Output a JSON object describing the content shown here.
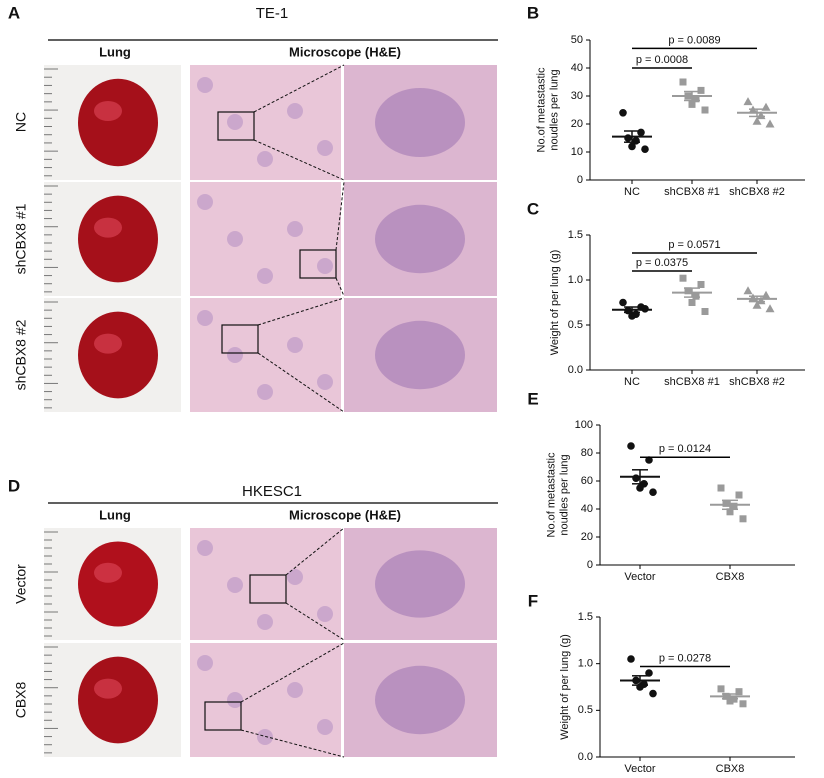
{
  "panel_labels": [
    "A",
    "B",
    "C",
    "D",
    "E",
    "F"
  ],
  "panel_a": {
    "title": "TE-1",
    "col_lung": "Lung",
    "col_micro": "Microscope (H&E)",
    "rows": [
      "NC",
      "shCBX8 #1",
      "shCBX8 #2"
    ]
  },
  "panel_d": {
    "title": "HKESC1",
    "col_lung": "Lung",
    "col_micro": "Microscope (H&E)",
    "rows": [
      "Vector",
      "CBX8"
    ]
  },
  "chart_data": [
    {
      "type": "dot",
      "ylabel": [
        "No.of metastastic",
        "noudles per lung"
      ],
      "categories": [
        "NC",
        "shCBX8 #1",
        "shCBX8 #2"
      ],
      "colors": [
        "#111111",
        "#9a9a9a",
        "#9a9a9a"
      ],
      "markers": [
        "circle",
        "square",
        "triangle"
      ],
      "points": [
        [
          24,
          17,
          15,
          14,
          12,
          11
        ],
        [
          35,
          32,
          30,
          29,
          27,
          25
        ],
        [
          28,
          26,
          25,
          23,
          21,
          20
        ]
      ],
      "means": [
        15.5,
        30,
        24
      ],
      "sems": [
        2,
        1.6,
        1.3
      ],
      "ylim": [
        0,
        50
      ],
      "yticks": [
        0,
        10,
        20,
        30,
        40,
        50
      ],
      "comparisons": [
        {
          "from": 0,
          "to": 1,
          "y": 40,
          "label": "p = 0.0008"
        },
        {
          "from": 0,
          "to": 2,
          "y": 47,
          "label": "p = 0.0089"
        }
      ]
    },
    {
      "type": "dot",
      "ylabel": [
        "Weight of per lung (g)"
      ],
      "categories": [
        "NC",
        "shCBX8 #1",
        "shCBX8 #2"
      ],
      "colors": [
        "#111111",
        "#9a9a9a",
        "#9a9a9a"
      ],
      "markers": [
        "circle",
        "square",
        "triangle"
      ],
      "points": [
        [
          0.75,
          0.7,
          0.66,
          0.62,
          0.6,
          0.68
        ],
        [
          1.02,
          0.95,
          0.88,
          0.82,
          0.75,
          0.65
        ],
        [
          0.88,
          0.83,
          0.8,
          0.77,
          0.72,
          0.68
        ]
      ],
      "means": [
        0.67,
        0.86,
        0.79
      ],
      "sems": [
        0.03,
        0.05,
        0.03
      ],
      "ylim": [
        0,
        1.5
      ],
      "yticks": [
        {
          "value": 0,
          "label": "0.0"
        },
        0.5,
        {
          "value": 1,
          "label": "1.0"
        },
        1.5
      ],
      "comparisons": [
        {
          "from": 0,
          "to": 1,
          "y": 1.1,
          "label": "p = 0.0375"
        },
        {
          "from": 0,
          "to": 2,
          "y": 1.3,
          "label": "p = 0.0571"
        }
      ]
    },
    {
      "type": "dot",
      "ylabel": [
        "No.of metastastic",
        "noudles per lung"
      ],
      "categories": [
        "Vector",
        "CBX8"
      ],
      "colors": [
        "#111111",
        "#9a9a9a"
      ],
      "markers": [
        "circle",
        "square"
      ],
      "points": [
        [
          85,
          75,
          62,
          58,
          55,
          52
        ],
        [
          55,
          50,
          44,
          42,
          38,
          33
        ]
      ],
      "means": [
        63,
        43
      ],
      "sems": [
        5,
        3.2
      ],
      "ylim": [
        0,
        100
      ],
      "yticks": [
        0,
        20,
        40,
        60,
        80,
        100
      ],
      "comparisons": [
        {
          "from": 0,
          "to": 1,
          "y": 77,
          "label": "p = 0.0124"
        }
      ]
    },
    {
      "type": "dot",
      "ylabel": [
        "Weight of per lung (g)"
      ],
      "categories": [
        "Vector",
        "CBX8"
      ],
      "colors": [
        "#111111",
        "#9a9a9a"
      ],
      "markers": [
        "circle",
        "square"
      ],
      "points": [
        [
          1.05,
          0.9,
          0.82,
          0.78,
          0.75,
          0.68
        ],
        [
          0.73,
          0.7,
          0.65,
          0.62,
          0.6,
          0.57
        ]
      ],
      "means": [
        0.82,
        0.65
      ],
      "sems": [
        0.05,
        0.025
      ],
      "ylim": [
        0,
        1.5
      ],
      "yticks": [
        {
          "value": 0,
          "label": "0.0"
        },
        0.5,
        {
          "value": 1,
          "label": "1.0"
        },
        1.5
      ],
      "comparisons": [
        {
          "from": 0,
          "to": 1,
          "y": 0.97,
          "label": "p = 0.0278"
        }
      ]
    }
  ]
}
